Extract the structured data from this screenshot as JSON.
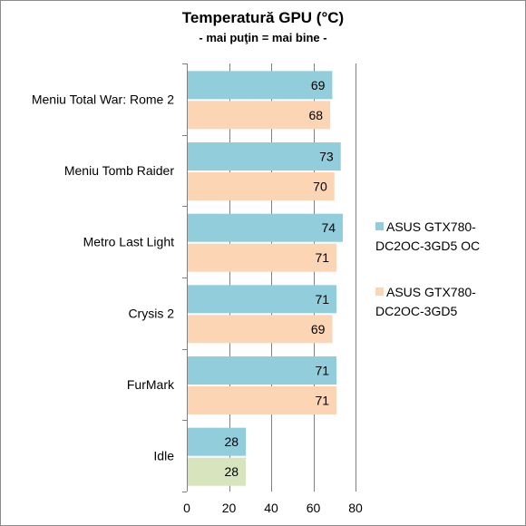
{
  "chart_data": {
    "type": "bar",
    "orientation": "horizontal",
    "title": "Temperatură GPU (°C)",
    "subtitle": "- mai puţin = mai bine -",
    "categories": [
      "Meniu Total War: Rome 2",
      "Meniu Tomb Raider",
      "Metro Last Light",
      "Crysis 2",
      "FurMark",
      "Idle"
    ],
    "series": [
      {
        "name": "ASUS GTX780-DC2OC-3GD5 OC",
        "name_lines": [
          "ASUS GTX780-",
          "DC2OC-3GD5 OC"
        ],
        "color": "#92cddc",
        "values": [
          69,
          73,
          74,
          71,
          71,
          28
        ]
      },
      {
        "name": "ASUS GTX780-DC2OC-3GD5",
        "name_lines": [
          "ASUS GTX780-",
          "DC2OC-3GD5"
        ],
        "color": "#fcd5b5",
        "values": [
          68,
          70,
          71,
          69,
          71,
          28
        ]
      }
    ],
    "highlight_color": "#d7e4bd",
    "highlight_index": 5,
    "xlim": [
      0,
      80
    ],
    "xticks": [
      0,
      20,
      40,
      60,
      80
    ],
    "grid": "vertical",
    "grid_color": "#7f7f7f",
    "legend": "right"
  }
}
